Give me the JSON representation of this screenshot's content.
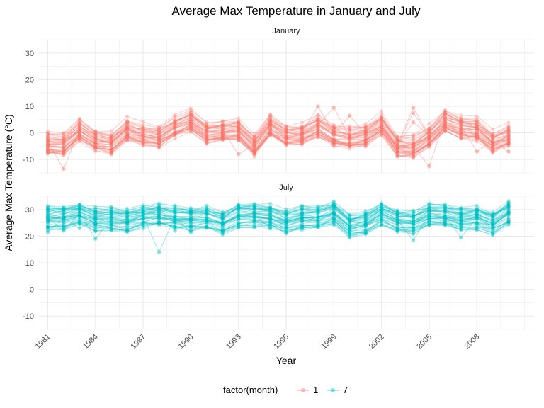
{
  "chart_data": {
    "type": "line",
    "title": "Average Max Temperature in January and July",
    "xlabel": "Year",
    "ylabel": "Average Max Temperature (°C)",
    "xlim": [
      1980.4,
      2011.6
    ],
    "ylim": [
      -15,
      35
    ],
    "x_ticks": [
      "1981",
      "1984",
      "1987",
      "1990",
      "1993",
      "1996",
      "1999",
      "2002",
      "2005",
      "2008"
    ],
    "y_ticks": [
      "-10",
      "0",
      "10",
      "20",
      "30"
    ],
    "grid": true,
    "legend": {
      "title": "factor(month)",
      "position": "bottom",
      "entries": [
        "1",
        "7"
      ]
    },
    "colors": {
      "1": "#F8766D",
      "7": "#00BFC4"
    },
    "panels": [
      {
        "strip": "January",
        "month": "1",
        "years": [
          1981,
          1982,
          1983,
          1984,
          1985,
          1986,
          1987,
          1988,
          1989,
          1990,
          1991,
          1992,
          1993,
          1994,
          1995,
          1996,
          1997,
          1998,
          1999,
          2000,
          2001,
          2002,
          2003,
          2004,
          2005,
          2006,
          2007,
          2008,
          2009,
          2010
        ],
        "mean": [
          -3.5,
          -3.8,
          1.5,
          -2.5,
          -3.5,
          1.5,
          -0.5,
          -1,
          2.5,
          5,
          0.5,
          1,
          1.5,
          -4.5,
          3,
          -0.5,
          0,
          3,
          -0.5,
          -1.5,
          -0.5,
          3.5,
          -4.5,
          -5,
          -1,
          5,
          2.5,
          1.5,
          -3,
          -0.5
        ],
        "outliers": [
          [
            1982,
            -13.5
          ],
          [
            1993,
            -8
          ],
          [
            1998,
            10
          ],
          [
            1999,
            9.5
          ],
          [
            2000,
            6.5
          ],
          [
            2004,
            9.5
          ],
          [
            2004,
            7.5
          ],
          [
            2004,
            4
          ],
          [
            2005,
            -12.5
          ],
          [
            2008,
            -7
          ],
          [
            2010,
            -7
          ]
        ]
      },
      {
        "strip": "July",
        "month": "7",
        "years": [
          1981,
          1982,
          1983,
          1984,
          1985,
          1986,
          1987,
          1988,
          1989,
          1990,
          1991,
          1992,
          1993,
          1994,
          1995,
          1996,
          1997,
          1998,
          1999,
          2000,
          2001,
          2002,
          2003,
          2004,
          2005,
          2006,
          2007,
          2008,
          2009,
          2010
        ],
        "mean": [
          27,
          27,
          28.5,
          26.5,
          26.5,
          26,
          27.5,
          28,
          27,
          26.5,
          27,
          25,
          28,
          28,
          27.5,
          25.5,
          27,
          27,
          29,
          24,
          25,
          28.5,
          26,
          25.5,
          28,
          28,
          26.5,
          27,
          25,
          29
        ],
        "outliers": [
          [
            1981,
            21.5
          ],
          [
            1982,
            22
          ],
          [
            1983,
            23
          ],
          [
            1984,
            19
          ],
          [
            1988,
            14
          ],
          [
            1989,
            22
          ],
          [
            1990,
            21.5
          ],
          [
            1995,
            23
          ],
          [
            2004,
            18.5
          ],
          [
            2007,
            19.5
          ]
        ]
      }
    ]
  }
}
